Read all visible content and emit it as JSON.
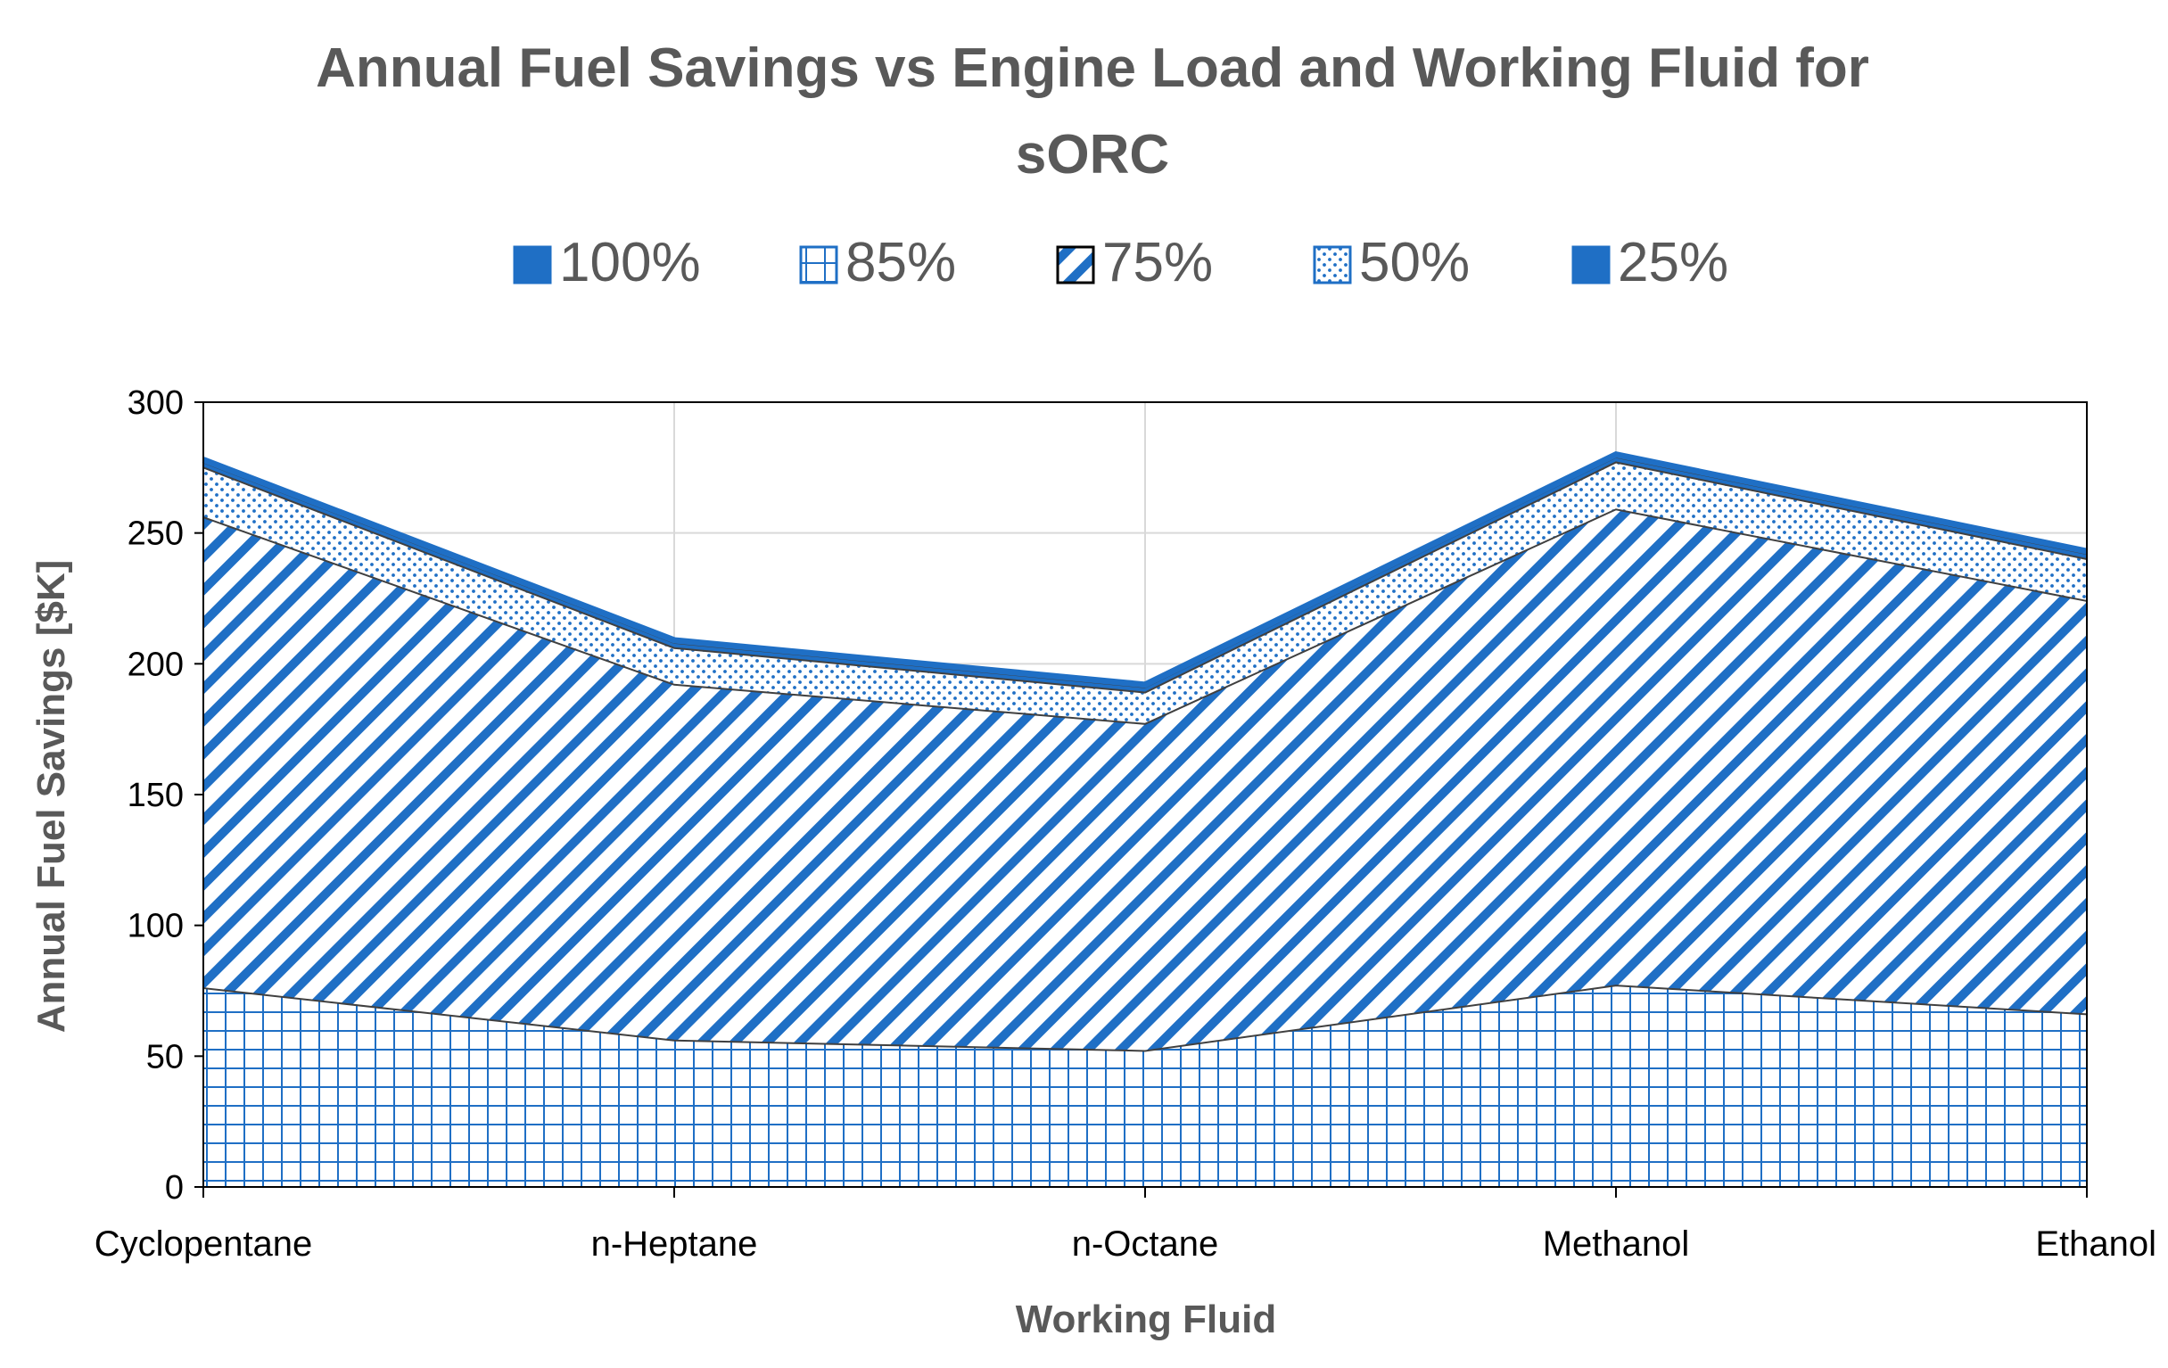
{
  "chart_data": {
    "type": "area",
    "stacked": true,
    "title_line1": "Annual Fuel Savings vs Engine Load and Working Fluid for",
    "title_line2": "sORC",
    "xlabel": "Working Fluid",
    "ylabel": "Annual Fuel Savings [$K]",
    "categories": [
      "Cyclopentane",
      "n-Heptane",
      "n-Octane",
      "Methanol",
      "Ethanol"
    ],
    "ylim": [
      0,
      300
    ],
    "yticks": [
      0,
      50,
      100,
      150,
      200,
      250,
      300
    ],
    "ytick_labels": [
      "0",
      "50",
      "100",
      "150",
      "200",
      "250",
      "300"
    ],
    "grid": true,
    "legend_position": "top",
    "legend_order": [
      "100%",
      "85%",
      "75%",
      "50%",
      "25%"
    ],
    "series": [
      {
        "name": "85%",
        "pattern": "grid",
        "values": [
          76,
          56,
          52,
          77,
          66
        ]
      },
      {
        "name": "75%",
        "pattern": "diagonal",
        "values": [
          180,
          136,
          125,
          182,
          158
        ]
      },
      {
        "name": "50%",
        "pattern": "dots",
        "values": [
          19,
          14,
          12,
          18,
          16
        ]
      },
      {
        "name": "25%",
        "pattern": "solid",
        "values": [
          2,
          2,
          2,
          2,
          2
        ]
      },
      {
        "name": "100%",
        "pattern": "solid",
        "values": [
          1,
          1,
          1,
          1,
          1
        ]
      }
    ],
    "colors": {
      "series": "#1f6fc5",
      "title": "#595959",
      "axis_text": "#000000",
      "grid": "#d9d9d9",
      "frame": "#000000"
    }
  }
}
